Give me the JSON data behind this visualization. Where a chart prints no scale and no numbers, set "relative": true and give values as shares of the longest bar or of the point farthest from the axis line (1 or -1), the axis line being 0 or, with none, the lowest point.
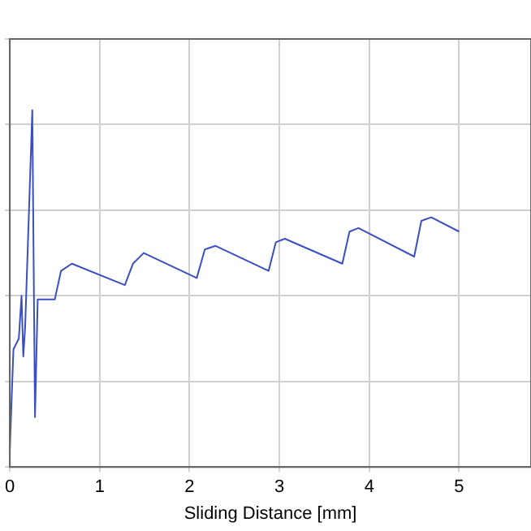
{
  "chart_data": {
    "type": "line",
    "xlabel": "Sliding Distance [mm]",
    "relative": true,
    "grid": true,
    "tick_labels": "x",
    "marker": "none",
    "line_style": "solid",
    "legend": false,
    "xlim": [
      0,
      5.8
    ],
    "xticks": [
      0,
      1,
      2,
      3,
      4,
      5
    ],
    "series": [
      {
        "color": "#3a4fc4",
        "x": [
          0,
          0.04,
          0.1,
          0.13,
          0.15,
          0.17,
          0.25,
          0.28,
          0.31,
          0.43,
          0.5,
          0.57,
          0.69,
          1.28,
          1.37,
          1.49,
          2.08,
          2.17,
          2.29,
          2.88,
          2.96,
          3.06,
          3.7,
          3.78,
          3.88,
          4.5,
          4.58,
          4.69,
          5.0
        ],
        "values": [
          0.05,
          0.33,
          0.36,
          0.48,
          0.31,
          0.39,
          1.0,
          0.14,
          0.47,
          0.47,
          0.47,
          0.55,
          0.57,
          0.51,
          0.57,
          0.6,
          0.53,
          0.61,
          0.62,
          0.55,
          0.63,
          0.64,
          0.57,
          0.66,
          0.67,
          0.59,
          0.69,
          0.7,
          0.66
        ]
      }
    ]
  }
}
